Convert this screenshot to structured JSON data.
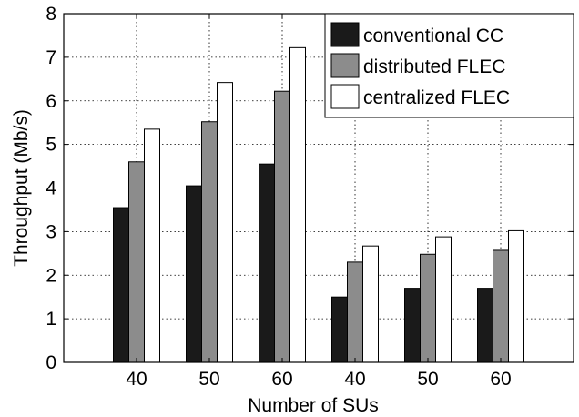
{
  "chart_data": {
    "type": "bar",
    "categories": [
      "40",
      "50",
      "60",
      "40",
      "50",
      "60"
    ],
    "series": [
      {
        "name": "conventional CC",
        "values": [
          3.55,
          4.05,
          4.55,
          1.5,
          1.7,
          1.7
        ],
        "color": "#1a1a1a"
      },
      {
        "name": "distributed FLEC",
        "values": [
          4.6,
          5.52,
          6.22,
          2.3,
          2.48,
          2.57
        ],
        "color": "#8c8c8c"
      },
      {
        "name": "centralized FLEC",
        "values": [
          5.35,
          6.42,
          7.22,
          2.67,
          2.88,
          3.02
        ],
        "color": "#ffffff"
      }
    ],
    "title": "",
    "xlabel": "Number of SUs",
    "ylabel": "Throughput (Mb/s)",
    "ylim": [
      0,
      8
    ],
    "yticks": [
      "0",
      "1",
      "2",
      "3",
      "4",
      "5",
      "6",
      "7",
      "8"
    ],
    "grid": true,
    "legend_position": "top-right"
  }
}
